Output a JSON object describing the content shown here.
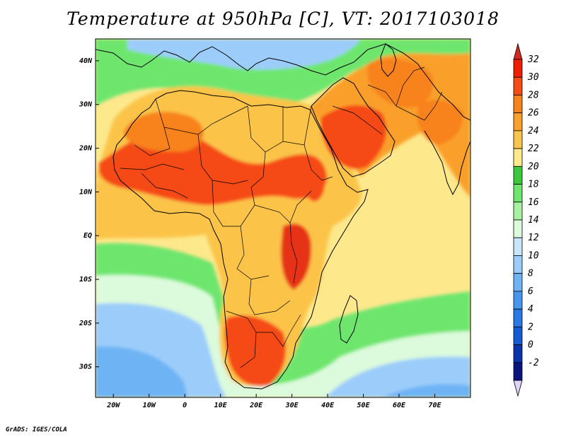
{
  "title": "Temperature at 950hPa [C], VT: 2017103018",
  "footer": "GrADS: IGES/COLA",
  "map": {
    "lon_range": [
      -25,
      80
    ],
    "lat_range": [
      -37,
      45
    ],
    "lat_ticks": [
      {
        "value": 40,
        "label": "40N"
      },
      {
        "value": 30,
        "label": "30N"
      },
      {
        "value": 20,
        "label": "20N"
      },
      {
        "value": 10,
        "label": "10N"
      },
      {
        "value": 0,
        "label": "EQ"
      },
      {
        "value": -10,
        "label": "10S"
      },
      {
        "value": -20,
        "label": "20S"
      },
      {
        "value": -30,
        "label": "30S"
      }
    ],
    "lon_ticks": [
      {
        "value": -20,
        "label": "20W"
      },
      {
        "value": -10,
        "label": "10W"
      },
      {
        "value": 0,
        "label": "0"
      },
      {
        "value": 10,
        "label": "10E"
      },
      {
        "value": 20,
        "label": "20E"
      },
      {
        "value": 30,
        "label": "30E"
      },
      {
        "value": 40,
        "label": "40E"
      },
      {
        "value": 50,
        "label": "50E"
      },
      {
        "value": 60,
        "label": "60E"
      },
      {
        "value": 70,
        "label": "70E"
      }
    ]
  },
  "colorbar": {
    "levels": [
      {
        "label": "32",
        "color": "#f01e00"
      },
      {
        "label": "30",
        "color": "#f54a14"
      },
      {
        "label": "28",
        "color": "#f8821c"
      },
      {
        "label": "26",
        "color": "#faa02c"
      },
      {
        "label": "24",
        "color": "#fbc44a"
      },
      {
        "label": "22",
        "color": "#fde88c"
      },
      {
        "label": "20",
        "color": "#3cc83c"
      },
      {
        "label": "18",
        "color": "#6ee66e"
      },
      {
        "label": "16",
        "color": "#a6f2a2"
      },
      {
        "label": "14",
        "color": "#dcfadc"
      },
      {
        "label": "12",
        "color": "#c8e6fa"
      },
      {
        "label": "10",
        "color": "#9ccdfa"
      },
      {
        "label": "8",
        "color": "#6eb4f5"
      },
      {
        "label": "6",
        "color": "#4696f0"
      },
      {
        "label": "4",
        "color": "#2878e6"
      },
      {
        "label": "2",
        "color": "#145ad2"
      },
      {
        "label": "0",
        "color": "#0a32aa"
      },
      {
        "label": "-2",
        "color": "#0a147d"
      }
    ],
    "top_color": "#d2281e",
    "bottom_color": "#dcd2fa"
  },
  "palette": {
    "ocean_warm": "#fde88c",
    "ocean_mid": "#fbc44a",
    "south_green": "#6ee66e",
    "south_light": "#dcfadc",
    "south_blue": "#9ccdfa",
    "south_deep": "#6eb4f5",
    "north_green": "#6ee66e",
    "north_blue": "#9ccdfa",
    "land_hot": "#f54a14",
    "land_warm": "#f8821c",
    "land_mid": "#faa02c",
    "land_cool": "#fbc44a",
    "land_red": "#e63214",
    "border": "#000000"
  }
}
